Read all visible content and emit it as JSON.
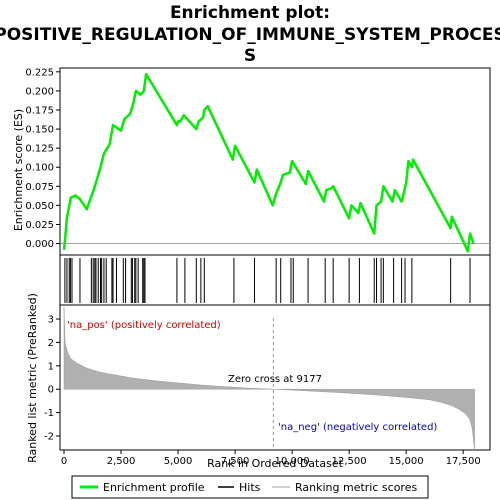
{
  "chart_data": {
    "type": "line",
    "title_lines": [
      "Enrichment plot:",
      "POSITIVE_REGULATION_OF_IMMUNE_SYSTEM_PROCES",
      "S"
    ],
    "top_panel": {
      "ylabel": "Enrichment score (ES)",
      "ylim": [
        -0.015,
        0.23
      ],
      "yticks": [
        "0.000",
        "0.025",
        "0.050",
        "0.075",
        "0.100",
        "0.125",
        "0.150",
        "0.175",
        "0.200",
        "0.225"
      ],
      "ytick_values": [
        0,
        0.025,
        0.05,
        0.075,
        0.1,
        0.125,
        0.15,
        0.175,
        0.2,
        0.225
      ],
      "xlim": [
        0,
        18500
      ],
      "series": [
        {
          "name": "Enrichment profile",
          "color": "#00ee00",
          "x": [
            0,
            60,
            120,
            200,
            300,
            500,
            700,
            1000,
            1150,
            1300,
            1450,
            1600,
            1750,
            2000,
            2150,
            2500,
            2650,
            2900,
            3050,
            3150,
            3350,
            3500,
            3600,
            4950,
            5000,
            5100,
            5250,
            5800,
            5900,
            6100,
            6150,
            6300,
            7400,
            7500,
            8350,
            8450,
            9150,
            9300,
            9500,
            9600,
            9900,
            10000,
            10600,
            10700,
            11400,
            11500,
            11700,
            11800,
            12500,
            12600,
            12900,
            13000,
            13600,
            13700,
            13900,
            14000,
            14400,
            14500,
            14800,
            14850,
            15000,
            15100,
            15250,
            15300,
            16950,
            17000,
            17700,
            17800,
            17950
          ],
          "y": [
            -0.008,
            0.01,
            0.032,
            0.045,
            0.06,
            0.063,
            0.058,
            0.045,
            0.058,
            0.07,
            0.085,
            0.1,
            0.118,
            0.13,
            0.155,
            0.148,
            0.163,
            0.17,
            0.185,
            0.2,
            0.195,
            0.2,
            0.222,
            0.155,
            0.16,
            0.16,
            0.168,
            0.15,
            0.16,
            0.165,
            0.175,
            0.18,
            0.11,
            0.128,
            0.08,
            0.097,
            0.05,
            0.065,
            0.08,
            0.09,
            0.093,
            0.108,
            0.078,
            0.095,
            0.055,
            0.07,
            0.072,
            0.075,
            0.033,
            0.05,
            0.04,
            0.053,
            0.013,
            0.05,
            0.055,
            0.075,
            0.055,
            0.07,
            0.055,
            0.06,
            0.08,
            0.108,
            0.1,
            0.11,
            0.02,
            0.035,
            -0.01,
            0.013,
            0.0
          ]
        }
      ]
    },
    "hits": [
      40,
      130,
      230,
      280,
      350,
      700,
      1200,
      1280,
      1350,
      1400,
      1500,
      1600,
      1650,
      1750,
      1850,
      2100,
      2150,
      2300,
      2600,
      2700,
      2950,
      3000,
      3100,
      3150,
      3250,
      3450,
      3500,
      3550,
      4950,
      5300,
      5800,
      6000,
      6150,
      7450,
      8350,
      9300,
      9500,
      9950,
      10050,
      10700,
      11450,
      11800,
      12500,
      12950,
      13600,
      13700,
      13900,
      14000,
      14450,
      14800,
      14950,
      15250,
      16950,
      17800
    ],
    "bottom_panel": {
      "ylabel": "Ranked list metric (PreRanked)",
      "ylim": [
        -2.6,
        3.6
      ],
      "yticks": [
        "3",
        "2",
        "1",
        "0",
        "-1",
        "-2"
      ],
      "ytick_values": [
        3,
        2,
        1,
        0,
        -1,
        -2
      ],
      "x": [
        0,
        50,
        150,
        300,
        600,
        1000,
        1500,
        2000,
        3000,
        4000,
        5000,
        6000,
        7000,
        8000,
        9177,
        10000,
        11000,
        12000,
        13000,
        14000,
        15000,
        16000,
        16500,
        17000,
        17300,
        17600,
        17800,
        17900,
        17950,
        18000
      ],
      "y": [
        3.5,
        2.0,
        1.6,
        1.3,
        1.1,
        0.9,
        0.75,
        0.65,
        0.48,
        0.36,
        0.27,
        0.18,
        0.11,
        0.05,
        0.0,
        -0.04,
        -0.09,
        -0.14,
        -0.2,
        -0.27,
        -0.35,
        -0.45,
        -0.55,
        -0.7,
        -0.85,
        -1.05,
        -1.3,
        -1.7,
        -2.2,
        -2.6
      ],
      "fill_color": "#b0b0b0",
      "zero_cross_label": "Zero cross at 9177",
      "zero_cross": 9177,
      "pos_label": "'na_pos' (positively correlated)",
      "neg_label": "'na_neg' (negatively correlated)",
      "pos_color": "#cc0000",
      "neg_color": "#0000cc"
    },
    "xlabel": "Rank in Ordered Dataset",
    "xticks": [
      "0",
      "2,500",
      "5,000",
      "7,500",
      "10,000",
      "12,500",
      "15,000",
      "17,500"
    ],
    "xtick_values": [
      0,
      2500,
      5000,
      7500,
      10000,
      12500,
      15000,
      17500
    ],
    "legend": {
      "placement": "bottom",
      "entries": [
        {
          "label": "Enrichment profile",
          "color": "#00ee00"
        },
        {
          "label": "Hits",
          "color": "#000000"
        },
        {
          "label": "Ranking metric scores",
          "color": "#c0c0c0"
        }
      ]
    }
  }
}
